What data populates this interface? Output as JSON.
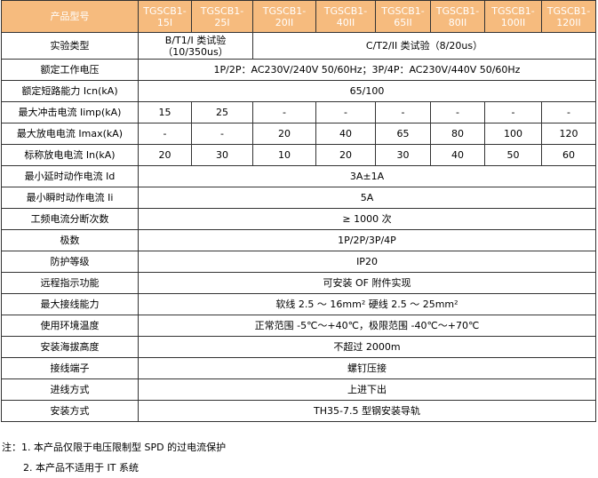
{
  "header": {
    "label": "产品型号",
    "models": [
      "TGSCB1-\n15I",
      "TGSCB1-\n25I",
      "TGSCB1-\n20II",
      "TGSCB1-\n40II",
      "TGSCB1-\n65II",
      "TGSCB1-\n80II",
      "TGSCB1-\n100II",
      "TGSCB1-\n120II"
    ]
  },
  "test_type": {
    "label": "实验类型",
    "class1": "B/T1/I 类试验（10/350us）",
    "class2": "C/T2/II 类试验（8/20us）"
  },
  "rows_span": [
    {
      "label": "额定工作电压",
      "value": "1P/2P：AC230V/240V 50/60Hz；3P/4P：AC230V/440V 50/60Hz"
    },
    {
      "label": "额定短路能力 Icn(kA)",
      "value": "65/100"
    }
  ],
  "iimp": {
    "label": "最大冲击电流 Iimp(kA)",
    "values": [
      "15",
      "25",
      "-",
      "-",
      "-",
      "-",
      "-",
      "-"
    ]
  },
  "imax": {
    "label": "最大放电电流 Imax(kA)",
    "values": [
      "-",
      "-",
      "20",
      "40",
      "65",
      "80",
      "100",
      "120"
    ]
  },
  "in": {
    "label": "标称放电电流 In(kA)",
    "values": [
      "20",
      "30",
      "10",
      "20",
      "30",
      "40",
      "50",
      "60"
    ]
  },
  "rows_span2": [
    {
      "label": "最小延时动作电流 Id",
      "value": "3A±1A"
    },
    {
      "label": "最小瞬时动作电流 Ii",
      "value": "5A"
    },
    {
      "label": "工频电流分断次数",
      "value": "≥ 1000 次"
    },
    {
      "label": "极数",
      "value": "1P/2P/3P/4P"
    },
    {
      "label": "防护等级",
      "value": "IP20"
    },
    {
      "label": "远程指示功能",
      "value": "可安装 OF 附件实现"
    },
    {
      "label": "最大接线能力",
      "value": "软线 2.5 ～ 16mm² 硬线 2.5 ～ 25mm²"
    },
    {
      "label": "使用环境温度",
      "value": "正常范围 -5℃～+40℃，极限范围 -40℃～+70℃"
    },
    {
      "label": "安装海拔高度",
      "value": "不超过 2000m"
    },
    {
      "label": "接线端子",
      "value": "螺钉压接"
    },
    {
      "label": "进线方式",
      "value": "上进下出"
    },
    {
      "label": "安装方式",
      "value": "TH35-7.5 型钢安装导轨"
    }
  ],
  "notes": [
    "注：1. 本产品仅限于电压限制型 SPD 的过电流保护",
    "2. 本产品不适用于 IT 系统"
  ],
  "colors": {
    "header_bg": "#F6BB7E",
    "header_text": "#ffffff"
  }
}
